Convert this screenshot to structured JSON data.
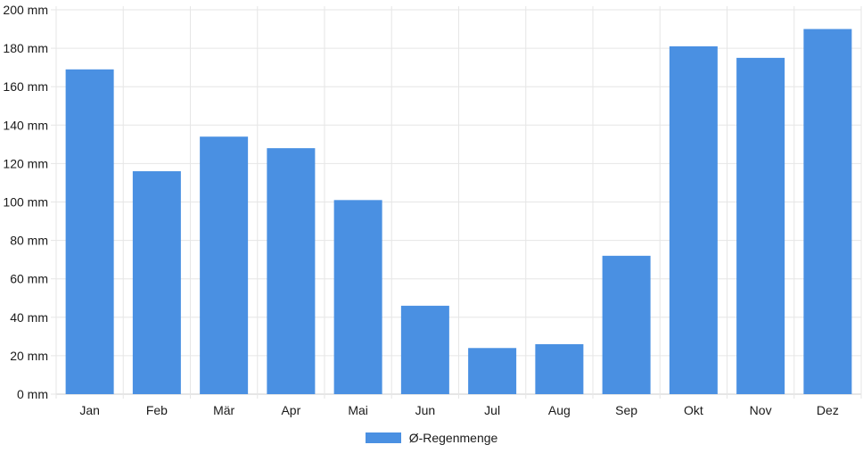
{
  "chart_data": {
    "type": "bar",
    "title": "",
    "categories": [
      "Jan",
      "Feb",
      "Mär",
      "Apr",
      "Mai",
      "Jun",
      "Jul",
      "Aug",
      "Sep",
      "Okt",
      "Nov",
      "Dez"
    ],
    "values": [
      169,
      116,
      134,
      128,
      101,
      46,
      24,
      26,
      72,
      181,
      175,
      190
    ],
    "series_label": "Ø-Regenmenge",
    "unit": "mm",
    "ylim": [
      0,
      200
    ],
    "ytick_step": 20,
    "ytick_labels": [
      "0 mm",
      "20 mm",
      "40 mm",
      "60 mm",
      "80 mm",
      "100 mm",
      "120 mm",
      "140 mm",
      "160 mm",
      "180 mm",
      "200 mm"
    ],
    "xlabel": "",
    "ylabel": "",
    "grid": true,
    "legend_position": "bottom",
    "colors": {
      "bar": "#4a90e2",
      "grid": "#e6e6e6",
      "axis": "#cccccc",
      "text": "#1a1a1a",
      "background": "#ffffff"
    }
  }
}
